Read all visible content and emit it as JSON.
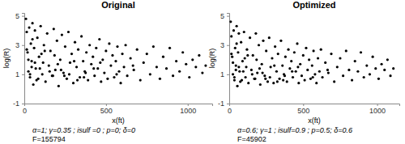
{
  "chart_data": [
    {
      "type": "scatter",
      "title": "Original",
      "x_label": "x(ft)",
      "y_label": "log(R)",
      "color": "#000000",
      "xlim": [
        0,
        1150
      ],
      "ylim": [
        -1,
        5.2
      ],
      "xticks": [
        0,
        500,
        1000
      ],
      "yticks": [
        -1,
        1,
        3,
        5
      ],
      "annotations": [
        "α=1; γ=0.35 ; isulf =0 ; p=0; δ=0",
        "F=155794"
      ],
      "x": [
        10,
        15,
        20,
        25,
        30,
        35,
        40,
        45,
        50,
        55,
        60,
        65,
        70,
        75,
        80,
        90,
        100,
        110,
        120,
        130,
        140,
        150,
        160,
        170,
        180,
        190,
        200,
        210,
        220,
        230,
        240,
        250,
        260,
        270,
        280,
        290,
        300,
        310,
        320,
        330,
        340,
        350,
        360,
        370,
        380,
        390,
        400,
        410,
        420,
        430,
        440,
        450,
        460,
        470,
        480,
        490,
        500,
        510,
        520,
        530,
        540,
        550,
        560,
        570,
        580,
        590,
        600,
        610,
        620,
        630,
        650,
        670,
        690,
        710,
        730,
        750,
        770,
        790,
        810,
        830,
        850,
        870,
        890,
        910,
        930,
        950,
        970,
        990,
        1010,
        1030,
        1050,
        1070,
        1090,
        1110,
        25,
        45,
        85,
        105,
        155,
        205,
        35,
        65,
        95,
        125,
        175,
        225,
        275,
        325,
        375,
        425,
        15,
        50,
        115,
        185,
        245,
        305,
        365,
        465,
        565,
        665
      ],
      "values": [
        4.8,
        3.9,
        2.5,
        1.2,
        4.2,
        0.8,
        3.1,
        1.9,
        4.5,
        0.3,
        2.8,
        4.0,
        1.4,
        0.6,
        3.5,
        2.2,
        4.3,
        1.0,
        3.0,
        0.5,
        3.8,
        1.6,
        2.6,
        0.9,
        4.1,
        1.3,
        3.3,
        0.2,
        2.0,
        3.7,
        1.1,
        2.9,
        0.7,
        3.9,
        1.8,
        2.4,
        0.4,
        3.2,
        1.5,
        2.7,
        0.8,
        3.6,
        1.9,
        1.2,
        2.5,
        0.6,
        3.0,
        1.7,
        2.2,
        0.9,
        2.8,
        1.4,
        3.4,
        0.5,
        2.0,
        1.1,
        2.6,
        0.7,
        3.1,
        1.6,
        2.3,
        0.8,
        1.9,
        2.9,
        1.2,
        0.4,
        2.4,
        1.5,
        3.0,
        0.9,
        2.1,
        1.3,
        2.7,
        0.6,
        1.8,
        2.4,
        1.0,
        2.9,
        1.5,
        0.7,
        2.2,
        1.4,
        2.8,
        0.9,
        1.9,
        1.2,
        2.5,
        1.7,
        0.8,
        2.0,
        1.5,
        2.3,
        1.1,
        1.6,
        2.0,
        1.5,
        0.7,
        2.4,
        1.2,
        1.7,
        1.0,
        1.8,
        1.4,
        2.6,
        0.9,
        1.3,
        1.0,
        0.6,
        1.1,
        1.4,
        2.7,
        3.4,
        1.8,
        2.3,
        0.9,
        1.9,
        0.8,
        1.8,
        1.0,
        1.6
      ]
    },
    {
      "type": "scatter",
      "title": "Optimized",
      "x_label": "x(ft)",
      "y_label": "log(R)",
      "color": "#000000",
      "xlim": [
        0,
        1150
      ],
      "ylim": [
        -1,
        5.2
      ],
      "xticks": [
        0,
        500,
        1000
      ],
      "yticks": [
        -1,
        1,
        3,
        5
      ],
      "annotations": [
        "α=0.6; γ=1 ; isulf=0.9 ; p=0.5; δ=0.6",
        "F=45902"
      ],
      "x": [
        10,
        15,
        20,
        25,
        30,
        35,
        40,
        45,
        50,
        55,
        60,
        65,
        70,
        75,
        80,
        90,
        100,
        110,
        120,
        130,
        140,
        150,
        160,
        170,
        180,
        190,
        200,
        210,
        220,
        230,
        240,
        250,
        260,
        270,
        280,
        290,
        300,
        310,
        320,
        330,
        340,
        350,
        360,
        370,
        380,
        390,
        400,
        410,
        420,
        430,
        440,
        450,
        460,
        470,
        480,
        490,
        500,
        510,
        520,
        530,
        540,
        550,
        560,
        570,
        580,
        590,
        600,
        610,
        620,
        630,
        650,
        670,
        690,
        710,
        730,
        750,
        770,
        790,
        810,
        830,
        850,
        870,
        890,
        910,
        930,
        950,
        970,
        990,
        1010,
        1030,
        1050,
        1070,
        1090,
        1110,
        25,
        45,
        85,
        105,
        155,
        205,
        35,
        65,
        95,
        125,
        175,
        225,
        275,
        325,
        375,
        425,
        15,
        50,
        115,
        185,
        245,
        305,
        365,
        465,
        565,
        665
      ],
      "values": [
        4.6,
        3.6,
        2.2,
        1.0,
        4.0,
        0.6,
        2.8,
        1.6,
        4.3,
        0.2,
        2.5,
        3.8,
        1.2,
        0.5,
        3.2,
        1.9,
        3.9,
        0.8,
        2.7,
        0.4,
        3.5,
        1.3,
        2.3,
        0.7,
        3.8,
        1.1,
        3.0,
        0.3,
        1.7,
        3.3,
        0.9,
        2.6,
        0.5,
        3.5,
        1.5,
        2.1,
        0.4,
        2.9,
        1.2,
        2.4,
        0.7,
        3.3,
        1.6,
        1.0,
        2.2,
        0.5,
        2.7,
        1.4,
        1.9,
        0.8,
        2.5,
        1.2,
        3.1,
        0.4,
        1.7,
        0.9,
        2.3,
        0.6,
        2.8,
        1.3,
        2.0,
        0.7,
        1.6,
        2.6,
        1.0,
        0.4,
        2.1,
        1.2,
        2.7,
        0.8,
        1.8,
        1.1,
        2.4,
        0.5,
        1.5,
        2.1,
        0.9,
        2.6,
        1.3,
        0.6,
        1.9,
        1.2,
        2.5,
        0.8,
        1.6,
        1.0,
        2.2,
        1.4,
        0.7,
        1.7,
        1.3,
        2.0,
        0.9,
        1.4,
        1.8,
        1.3,
        0.6,
        2.1,
        1.0,
        1.4,
        0.8,
        1.5,
        1.2,
        2.3,
        0.7,
        1.1,
        0.8,
        0.5,
        0.9,
        1.2,
        2.4,
        3.1,
        1.5,
        2.0,
        0.7,
        1.6,
        0.6,
        1.5,
        0.8,
        1.3
      ]
    }
  ]
}
